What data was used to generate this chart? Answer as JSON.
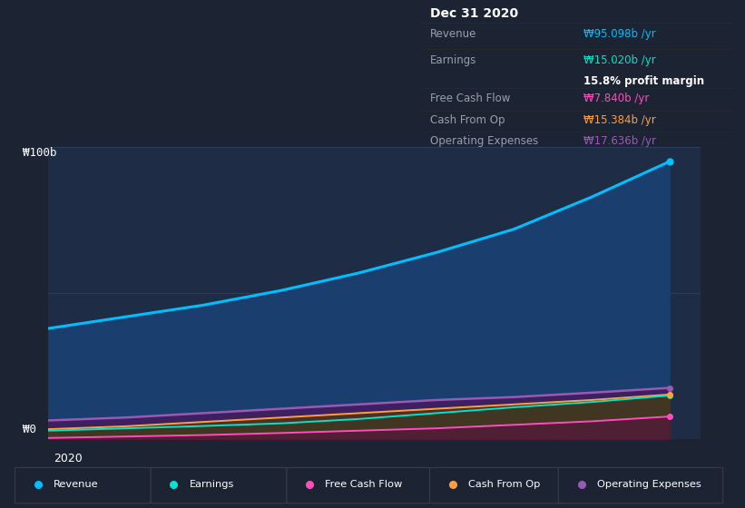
{
  "bg_color": "#1c2333",
  "chart_bg": "#1e2d45",
  "x_label": "2020",
  "y_label_100b": "₩100b",
  "y_label_0": "₩0",
  "revenue_color": "#00bfff",
  "earnings_color": "#00e5cc",
  "fcf_color": "#ff4dbd",
  "cashfromop_color": "#ffa040",
  "opex_color": "#9b59b6",
  "revenue_fill": "#1a3f6e",
  "opex_fill": "#3d2060",
  "earnings_fill": "#0d3d50",
  "cop_fill": "#5a3800",
  "fcf_fill": "#5a1040",
  "legend_items": [
    {
      "label": "Revenue",
      "color": "#00bfff"
    },
    {
      "label": "Earnings",
      "color": "#00e5cc"
    },
    {
      "label": "Free Cash Flow",
      "color": "#ff4dbd"
    },
    {
      "label": "Cash From Op",
      "color": "#ffa040"
    },
    {
      "label": "Operating Expenses",
      "color": "#9b59b6"
    }
  ],
  "tooltip_title": "Dec 31 2020",
  "tooltip_bg": "#060606",
  "revenue_data_x": [
    2012,
    2013,
    2014,
    2015,
    2016,
    2017,
    2018,
    2019,
    2020
  ],
  "revenue_data_y": [
    38,
    42,
    46,
    51,
    57,
    64,
    72,
    83,
    95.098
  ],
  "earnings_data_y": [
    3.0,
    3.8,
    4.6,
    5.5,
    7.0,
    9.0,
    11.0,
    12.8,
    15.02
  ],
  "fcf_data_y": [
    0.5,
    1.0,
    1.5,
    2.2,
    3.0,
    3.8,
    5.0,
    6.2,
    7.84
  ],
  "cashfromop_data_y": [
    3.5,
    4.5,
    6.0,
    7.5,
    9.0,
    10.5,
    12.0,
    13.5,
    15.384
  ],
  "opex_data_y": [
    6.5,
    7.5,
    9.0,
    10.5,
    12.0,
    13.5,
    14.5,
    16.0,
    17.636
  ],
  "ylim": [
    0,
    100
  ],
  "xlim_start": 2012,
  "xlim_end": 2020.4
}
